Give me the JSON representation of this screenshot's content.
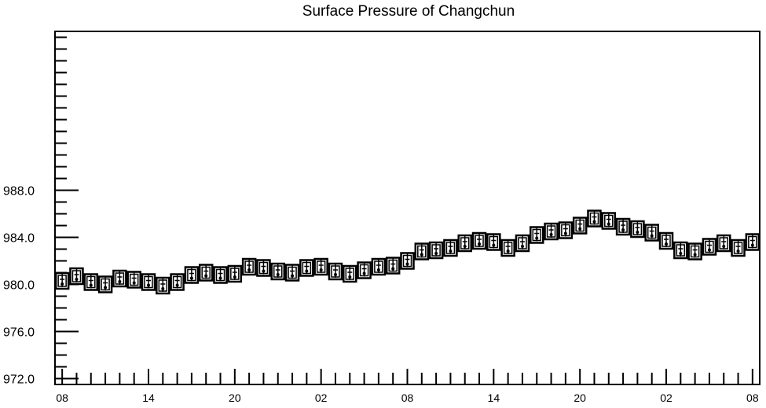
{
  "chart_data": {
    "type": "candlestick",
    "title": "Surface Pressure of Changchun",
    "xlabel": "",
    "ylabel": "",
    "ylim": [
      971.5,
      1001.5
    ],
    "y_ticks": [
      {
        "value": 972.0,
        "label": "972.0"
      },
      {
        "value": 976.0,
        "label": "976.0"
      },
      {
        "value": 980.0,
        "label": "980.0"
      },
      {
        "value": 984.0,
        "label": "984.0"
      },
      {
        "value": 988.0,
        "label": "988.0"
      }
    ],
    "y_minor_step": 1,
    "x_index_range": [
      -0.5,
      48.5
    ],
    "x_ticks": [
      {
        "index": 0,
        "label": "08"
      },
      {
        "index": 6,
        "label": "14"
      },
      {
        "index": 12,
        "label": "20"
      },
      {
        "index": 18,
        "label": "02"
      },
      {
        "index": 24,
        "label": "08"
      },
      {
        "index": 30,
        "label": "14"
      },
      {
        "index": 36,
        "label": "20"
      },
      {
        "index": 42,
        "label": "02"
      },
      {
        "index": 48,
        "label": "08"
      }
    ],
    "values": [
      980.3,
      980.7,
      980.2,
      980.0,
      980.5,
      980.4,
      980.2,
      979.9,
      980.2,
      980.8,
      981.0,
      980.8,
      980.9,
      981.5,
      981.4,
      981.1,
      981.0,
      981.4,
      981.5,
      981.1,
      980.9,
      981.2,
      981.5,
      981.6,
      982.0,
      982.8,
      982.9,
      983.1,
      983.5,
      983.7,
      983.6,
      983.1,
      983.5,
      984.2,
      984.5,
      984.6,
      985.0,
      985.6,
      985.4,
      984.9,
      984.7,
      984.4,
      983.7,
      982.9,
      982.8,
      983.2,
      983.5,
      983.1,
      983.6
    ],
    "grid": false,
    "legend": "none"
  }
}
